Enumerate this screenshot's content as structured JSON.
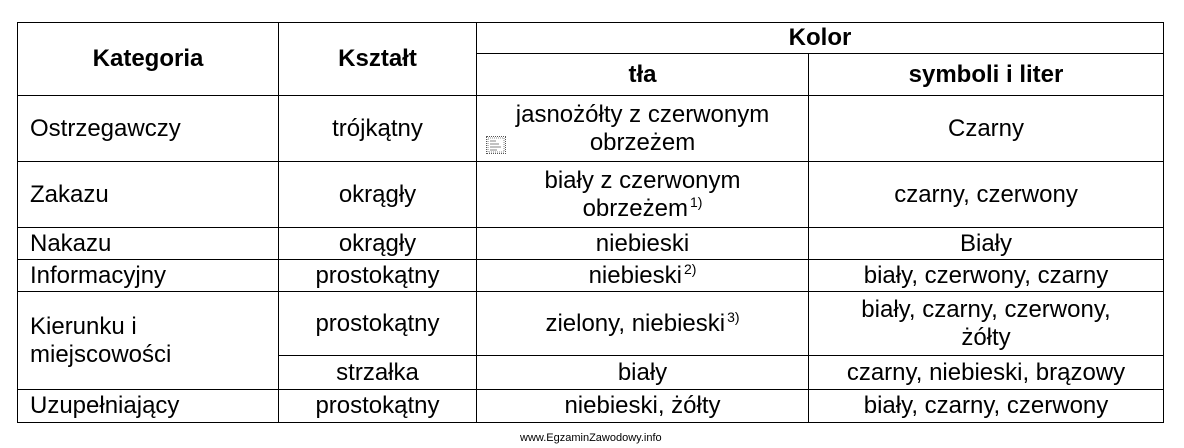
{
  "headers": {
    "kategoria": "Kategoria",
    "ksztalt": "Kształt",
    "kolor": "Kolor",
    "tla": "tła",
    "symboli": "symboli i liter"
  },
  "rows": [
    {
      "kategoria": "Ostrzegawczy",
      "ksztalt": "trójkątny",
      "tla_line1": "jasnożółty z czerwonym",
      "tla_line2": "obrzeżem",
      "symboli": "Czarny"
    },
    {
      "kategoria": "Zakazu",
      "ksztalt": "okrągły",
      "tla_line1": "biały z czerwonym",
      "tla_line2": "obrzeżem",
      "tla_sup": "1)",
      "symboli": "czarny, czerwony"
    },
    {
      "kategoria": "Nakazu",
      "ksztalt": "okrągły",
      "tla": "niebieski",
      "symboli": "Biały"
    },
    {
      "kategoria": "Informacyjny",
      "ksztalt": "prostokątny",
      "tla": "niebieski",
      "tla_sup": "2)",
      "symboli": "biały, czerwony, czarny"
    },
    {
      "kategoria_line1": "Kierunku i",
      "kategoria_line2": "miejscowości",
      "ksztalt": "prostokątny",
      "tla": "zielony, niebieski",
      "tla_sup": "3)",
      "symboli_line1": "biały, czarny, czerwony,",
      "symboli_line2": "żółty"
    },
    {
      "ksztalt": "strzałka",
      "tla": "biały",
      "symboli": "czarny, niebieski, brązowy"
    },
    {
      "kategoria": "Uzupełniający",
      "ksztalt": "prostokątny",
      "tla": "niebieski, żółty",
      "symboli": "biały, czarny, czerwony"
    }
  ],
  "watermark": "www.EgzaminZawodowy.info"
}
